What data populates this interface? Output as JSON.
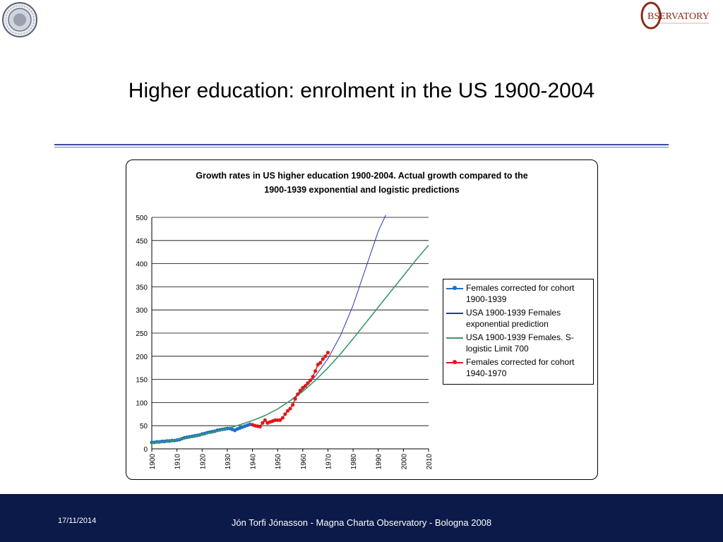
{
  "slide": {
    "title": "Higher education: enrolment in the US 1900-2004",
    "footer_date": "17/11/2014",
    "footer_text": "Jón Torfi Jónasson - Magna Charta Observatory - Bologna 2008",
    "logo_text": "BSERVATORY"
  },
  "colors": {
    "footer_bg": "#0c1a4a",
    "rule": "#3a4a9a",
    "series_1900_1939": "#1f6fc5",
    "series_exponential": "#2b2fb8",
    "series_logistic": "#3a9a6a",
    "series_1940_1970": "#e01818"
  },
  "chart_data": {
    "type": "line",
    "title": "Growth rates in US higher education 1900-2004. Actual growth compared to the 1900-1939 exponential and logistic predictions",
    "title_lines": [
      "Growth rates in US higher education 1900-2004. Actual growth compared to the",
      "1900-1939 exponential and logistic predictions"
    ],
    "xlabel": "",
    "ylabel": "",
    "xlim": [
      1900,
      2010
    ],
    "ylim": [
      0,
      500
    ],
    "x_ticks": [
      "1900",
      "1910",
      "1920",
      "1930",
      "1940",
      "1950",
      "1960",
      "1970",
      "1980",
      "1990",
      "2000",
      "2010"
    ],
    "y_ticks": [
      "0",
      "50",
      "100",
      "150",
      "200",
      "250",
      "300",
      "350",
      "400",
      "450",
      "500"
    ],
    "grid": "horizontal",
    "legend_position": "right",
    "series": [
      {
        "name": "Females corrected for cohort 1900-1939",
        "style": "line-markers",
        "color": "#1f6fc5",
        "x": [
          1900,
          1901,
          1902,
          1903,
          1904,
          1905,
          1906,
          1907,
          1908,
          1909,
          1910,
          1911,
          1912,
          1913,
          1914,
          1915,
          1916,
          1917,
          1918,
          1919,
          1920,
          1921,
          1922,
          1923,
          1924,
          1925,
          1926,
          1927,
          1928,
          1929,
          1930,
          1931,
          1932,
          1933,
          1934,
          1935,
          1936,
          1937,
          1938,
          1939
        ],
        "y": [
          14,
          14,
          15,
          15,
          16,
          16,
          17,
          17,
          18,
          18,
          19,
          20,
          22,
          24,
          25,
          26,
          27,
          28,
          29,
          30,
          32,
          33,
          35,
          36,
          37,
          38,
          40,
          41,
          42,
          43,
          44,
          44,
          42,
          40,
          43,
          45,
          47,
          49,
          51,
          53
        ]
      },
      {
        "name": "USA 1900-1939 Females exponential prediction",
        "style": "line",
        "color": "#2b2fb8",
        "x": [
          1900,
          1905,
          1910,
          1915,
          1920,
          1925,
          1930,
          1935,
          1940,
          1945,
          1950,
          1955,
          1960,
          1965,
          1970,
          1975,
          1980,
          1985,
          1990,
          1993
        ],
        "y": [
          13,
          16,
          20,
          25,
          31,
          37,
          44,
          52,
          61,
          72,
          86,
          104,
          127,
          157,
          195,
          245,
          310,
          390,
          470,
          505
        ]
      },
      {
        "name": "USA 1900-1939 Females. S-logistic  Limit 700",
        "style": "line",
        "color": "#3a9a6a",
        "x": [
          1900,
          1905,
          1910,
          1915,
          1920,
          1925,
          1930,
          1935,
          1940,
          1945,
          1950,
          1955,
          1960,
          1965,
          1970,
          1975,
          1980,
          1985,
          1990,
          1995,
          2000,
          2005,
          2010
        ],
        "y": [
          13,
          16,
          20,
          25,
          31,
          37,
          44,
          52,
          61,
          72,
          86,
          104,
          124,
          148,
          175,
          205,
          238,
          272,
          306,
          340,
          374,
          408,
          440
        ]
      },
      {
        "name": "Females corrected for cohort 1940-1970",
        "style": "line-markers",
        "color": "#e01818",
        "x": [
          1940,
          1941,
          1942,
          1943,
          1944,
          1945,
          1946,
          1947,
          1948,
          1949,
          1950,
          1951,
          1952,
          1953,
          1954,
          1955,
          1956,
          1957,
          1958,
          1959,
          1960,
          1961,
          1962,
          1963,
          1964,
          1965,
          1966,
          1967,
          1968,
          1969,
          1970
        ],
        "y": [
          52,
          50,
          49,
          48,
          56,
          62,
          56,
          58,
          60,
          62,
          62,
          62,
          67,
          75,
          82,
          87,
          95,
          108,
          118,
          126,
          132,
          136,
          142,
          148,
          156,
          168,
          182,
          186,
          194,
          200,
          208
        ]
      }
    ]
  }
}
